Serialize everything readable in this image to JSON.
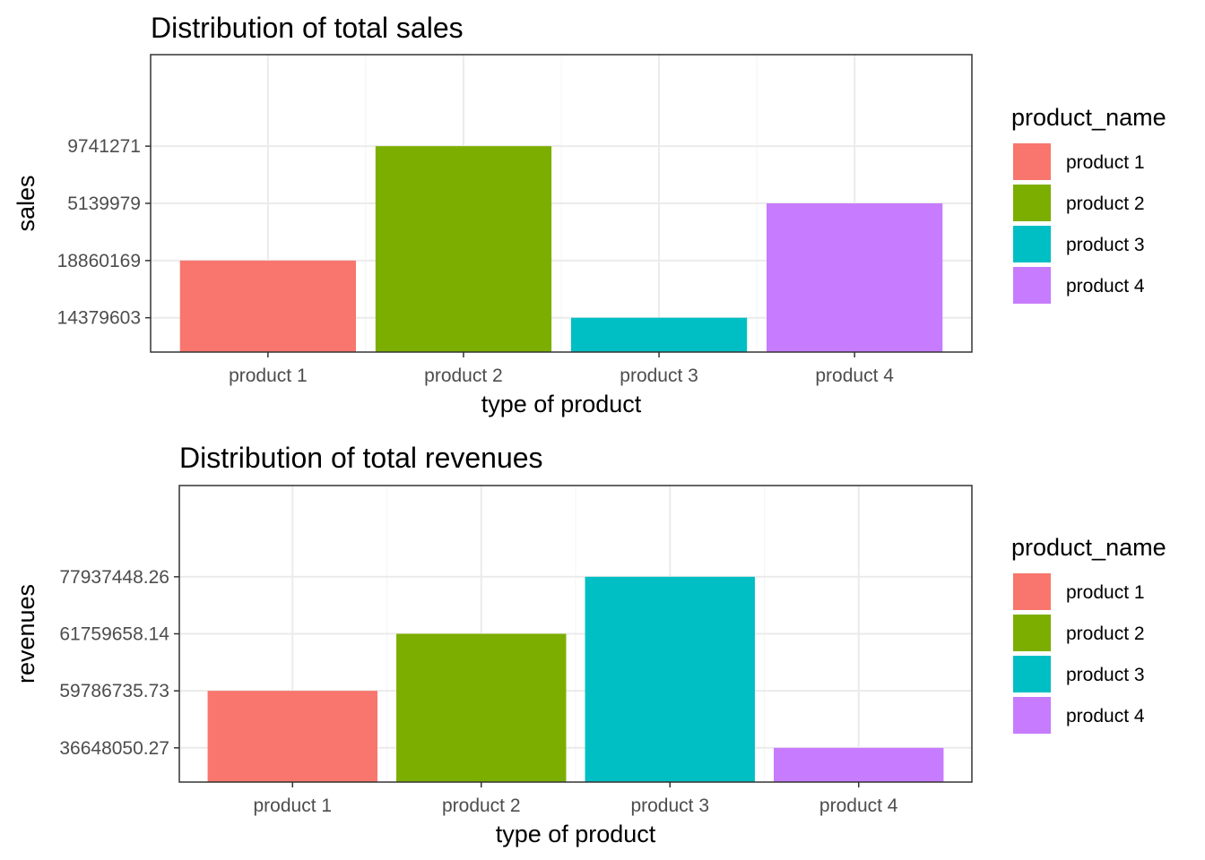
{
  "chart_data": [
    {
      "type": "bar",
      "title": "Distribution of total sales",
      "xlabel": "type of product",
      "ylabel": "sales",
      "y_scale": "discrete",
      "y_levels": [
        "14379603",
        "18860169",
        "5139979",
        "9741271"
      ],
      "categories": [
        "product 1",
        "product 2",
        "product 3",
        "product 4"
      ],
      "values": [
        "18860169",
        "9741271",
        "14379603",
        "5139979"
      ],
      "grid": true,
      "legend": {
        "title": "product_name",
        "position": "right",
        "entries": [
          "product 1",
          "product 2",
          "product 3",
          "product 4"
        ]
      },
      "colors": [
        "#F8766D",
        "#7CAE00",
        "#00BFC4",
        "#C77CFF"
      ]
    },
    {
      "type": "bar",
      "title": "Distribution of total revenues",
      "xlabel": "type of product",
      "ylabel": "revenues",
      "y_scale": "discrete",
      "y_levels": [
        "36648050.27",
        "59786735.73",
        "61759658.14",
        "77937448.26"
      ],
      "categories": [
        "product 1",
        "product 2",
        "product 3",
        "product 4"
      ],
      "values": [
        "59786735.73",
        "61759658.14",
        "77937448.26",
        "36648050.27"
      ],
      "grid": true,
      "legend": {
        "title": "product_name",
        "position": "right",
        "entries": [
          "product 1",
          "product 2",
          "product 3",
          "product 4"
        ]
      },
      "colors": [
        "#F8766D",
        "#7CAE00",
        "#00BFC4",
        "#C77CFF"
      ]
    }
  ]
}
